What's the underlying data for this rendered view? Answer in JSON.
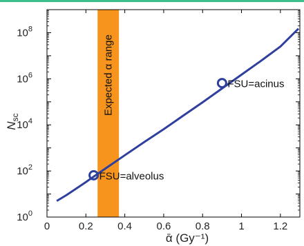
{
  "chart_data": {
    "type": "line",
    "xlabel": "ᾱ (Gy⁻¹)",
    "ylabel": "N",
    "ylabel_sub": "sc",
    "xlim": [
      0,
      1.3
    ],
    "ylim": [
      1,
      1000000000
    ],
    "yscale": "log",
    "x_ticks": [
      "0",
      "0.2",
      "0.4",
      "0.6",
      "0.8",
      "1",
      "1.2"
    ],
    "x_tick_values": [
      0,
      0.2,
      0.4,
      0.6,
      0.8,
      1.0,
      1.2
    ],
    "y_ticks": [
      {
        "base": "10",
        "exp": "0",
        "value": 1
      },
      {
        "base": "10",
        "exp": "2",
        "value": 100
      },
      {
        "base": "10",
        "exp": "4",
        "value": 10000
      },
      {
        "base": "10",
        "exp": "6",
        "value": 1000000
      },
      {
        "base": "10",
        "exp": "8",
        "value": 100000000
      }
    ],
    "grid": false,
    "series": [
      {
        "color": "#2e3f9e",
        "x": [
          0.05,
          0.1,
          0.15,
          0.2,
          0.25,
          0.3,
          0.4,
          0.5,
          0.6,
          0.7,
          0.8,
          0.9,
          1.0,
          1.1,
          1.2,
          1.3
        ],
        "y": [
          5,
          9,
          17,
          33,
          65,
          127,
          480,
          1800,
          6500,
          25000,
          95000,
          380000,
          1500000,
          6000000,
          25000000,
          150000000
        ]
      }
    ],
    "band": {
      "label": "Expected α range",
      "x_range": [
        0.26,
        0.37
      ],
      "color": "#f7941d"
    },
    "annotations": [
      {
        "label": "FSU=alveolus",
        "x": 0.24,
        "y": 65
      },
      {
        "label": "FSU=acinus",
        "x": 0.9,
        "y": 650000
      }
    ],
    "colors": {
      "line": "#2e3f9e",
      "band": "#f7941d",
      "marker": "#2e3f9e",
      "top_strip": "#3dbf8c"
    }
  }
}
